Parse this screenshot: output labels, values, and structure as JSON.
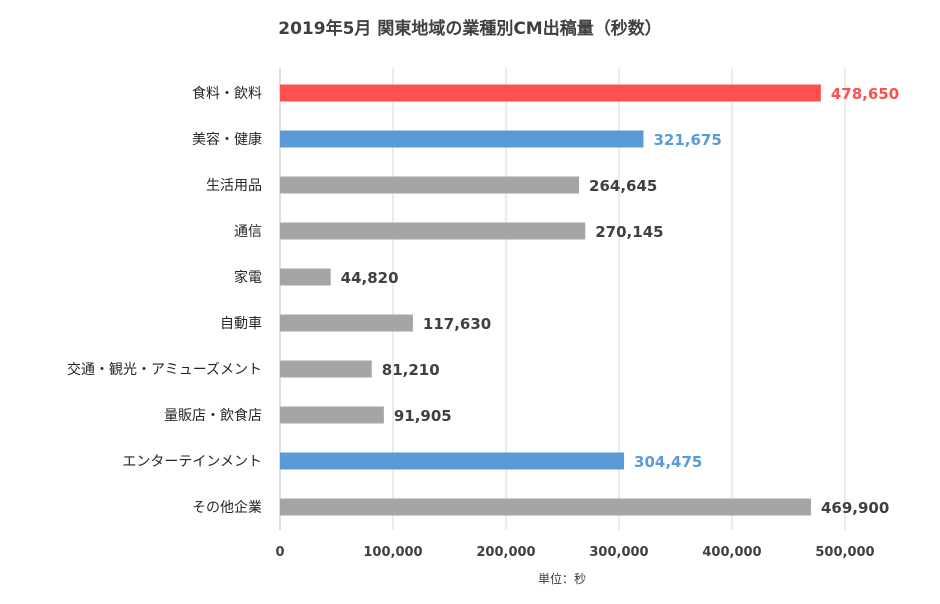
{
  "chart_data": {
    "type": "bar",
    "orientation": "horizontal",
    "title": "2019年5月 関東地域の業種別CM出稿量（秒数）",
    "xlabel": "単位：秒",
    "ylabel": "",
    "xlim": [
      0,
      500000
    ],
    "x_ticks": [
      "0",
      "100,000",
      "200,000",
      "300,000",
      "400,000",
      "500,000"
    ],
    "x_tick_values": [
      0,
      100000,
      200000,
      300000,
      400000,
      500000
    ],
    "grid": "vertical",
    "categories": [
      "食料・飲料",
      "美容・健康",
      "生活用品",
      "通信",
      "家電",
      "自動車",
      "交通・観光・アミューズメント",
      "量販店・飲食店",
      "エンターテインメント",
      "その他企業"
    ],
    "values": [
      478650,
      321675,
      264645,
      270145,
      44820,
      117630,
      81210,
      91905,
      304475,
      469900
    ],
    "data_labels": [
      "478,650",
      "321,675",
      "264,645",
      "270,145",
      "44,820",
      "117,630",
      "81,210",
      "91,905",
      "304,475",
      "469,900"
    ],
    "bar_colors": [
      "#FF5050",
      "#5B9BD5",
      "#A5A5A5",
      "#A5A5A5",
      "#A5A5A5",
      "#A5A5A5",
      "#A5A5A5",
      "#A5A5A5",
      "#5B9BD5",
      "#A5A5A5"
    ],
    "label_colors": [
      "#FF5050",
      "#5B9BD5",
      "#404040",
      "#404040",
      "#404040",
      "#404040",
      "#404040",
      "#404040",
      "#5B9BD5",
      "#404040"
    ]
  }
}
